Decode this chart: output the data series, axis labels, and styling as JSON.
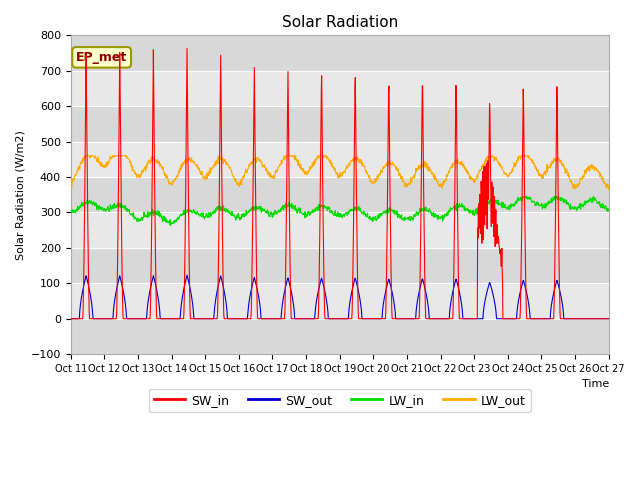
{
  "title": "Solar Radiation",
  "ylabel": "Solar Radiation (W/m2)",
  "xlabel": "Time",
  "ylim": [
    -100,
    800
  ],
  "background_color": "#ffffff",
  "plot_bg_color": "#e8e8e8",
  "label_text": "EP_met",
  "legend_entries": [
    "SW_in",
    "SW_out",
    "LW_in",
    "LW_out"
  ],
  "line_colors": [
    "#ff0000",
    "#0000cc",
    "#00dd00",
    "#ffaa00"
  ],
  "sw_peaks": [
    760,
    760,
    760,
    770,
    758,
    730,
    725,
    720,
    722,
    704,
    712,
    707,
    645,
    682,
    682,
    0
  ],
  "lw_in_base": [
    300,
    310,
    280,
    270,
    290,
    285,
    295,
    295,
    290,
    280,
    280,
    285,
    300,
    315,
    320,
    310
  ],
  "lw_out_base": [
    380,
    430,
    400,
    380,
    400,
    380,
    400,
    410,
    400,
    385,
    375,
    375,
    390,
    405,
    405,
    370
  ],
  "n_days": 16,
  "dt_hours": 0.25,
  "band_colors": [
    "#d8d8d8",
    "#e8e8e8"
  ],
  "grid_color": "#ffffff",
  "spine_color": "#aaaaaa"
}
